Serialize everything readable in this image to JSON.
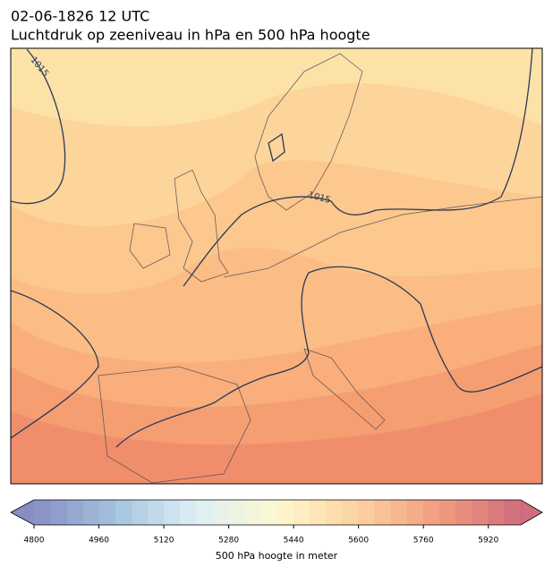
{
  "header": {
    "date": "02-06-1826 12 UTC",
    "title": "Luchtdruk op zeeniveau in hPa en 500 hPa hoogte"
  },
  "map": {
    "isobar_labels": [
      "1015",
      "1015"
    ]
  },
  "colorbar": {
    "label": "500 hPa hoogte in meter",
    "lim": [
      4800,
      6000
    ],
    "step": 40,
    "ticks": [
      4800,
      4960,
      5120,
      5280,
      5440,
      5600,
      5760,
      5920
    ],
    "colors": [
      "#6a72b4",
      "#8fb4d6",
      "#d6ecf2",
      "#fdf6c4",
      "#fbc688",
      "#ee8460",
      "#c4485e"
    ]
  }
}
